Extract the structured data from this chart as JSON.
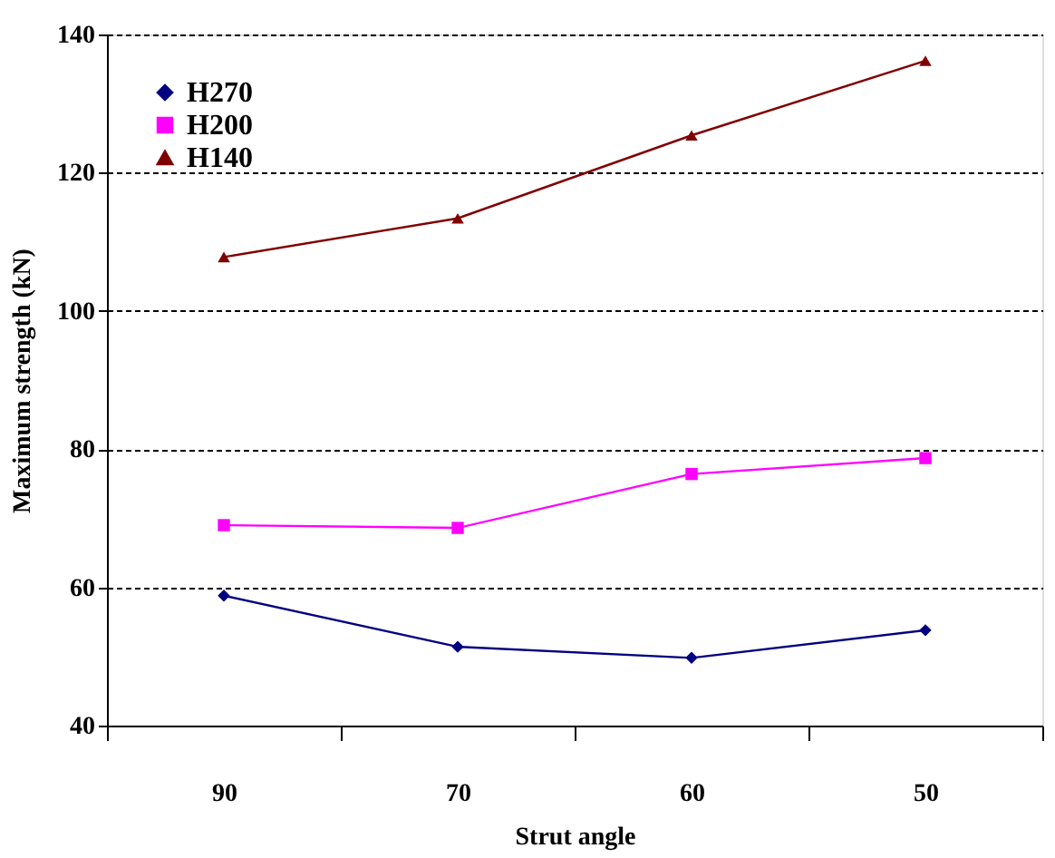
{
  "chart_data": {
    "type": "line",
    "xlabel": "Strut angle",
    "ylabel": "Maximum strength (kN)",
    "categories": [
      "90",
      "70",
      "60",
      "50"
    ],
    "series": [
      {
        "name": "H270",
        "color": "#000080",
        "marker": "diamond",
        "values": [
          58.8,
          51.4,
          49.8,
          53.8
        ]
      },
      {
        "name": "H200",
        "color": "#ff00ff",
        "marker": "square",
        "values": [
          69.0,
          68.6,
          76.4,
          78.7
        ]
      },
      {
        "name": "H140",
        "color": "#800000",
        "marker": "triangle",
        "values": [
          107.8,
          113.4,
          125.4,
          136.2
        ]
      }
    ],
    "ylim": [
      40,
      140
    ],
    "yticks": [
      40,
      60,
      80,
      100,
      120,
      140
    ],
    "grid": "y",
    "legend": "top left",
    "line_style": "solid"
  }
}
